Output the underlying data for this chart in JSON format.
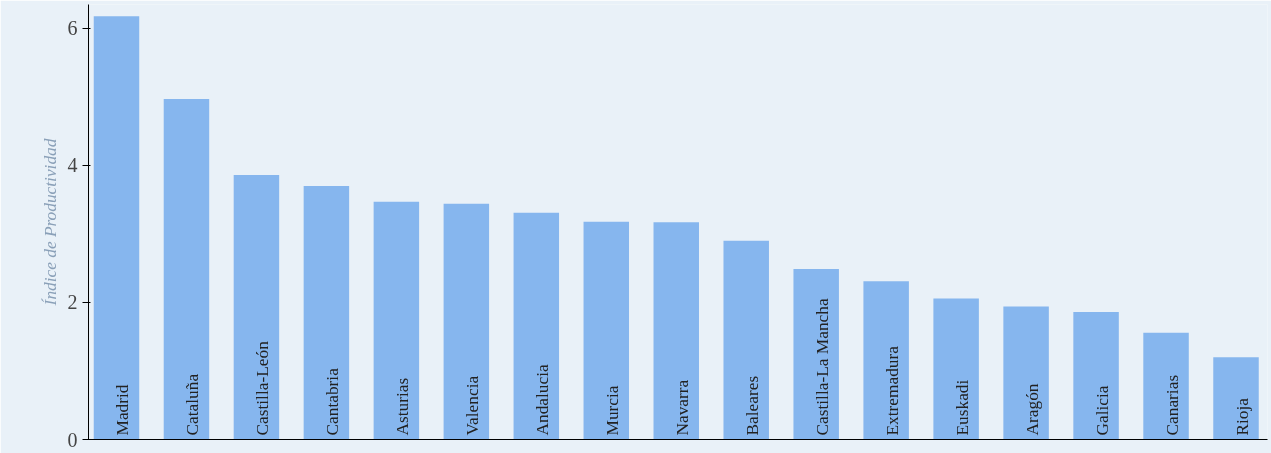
{
  "chart_data": {
    "type": "bar",
    "ylabel": "Índice de Productividad",
    "categories": [
      "Madrid",
      "Cataluña",
      "Castilla-León",
      "Cantabria",
      "Asturias",
      "Valencia",
      "Andalucia",
      "Murcia",
      "Navarra",
      "Baleares",
      "Castilla-La Mancha",
      "Extremadura",
      "Euskadi",
      "Aragón",
      "Galicia",
      "Canarias",
      "Rioja"
    ],
    "values": [
      6.18,
      4.97,
      3.86,
      3.7,
      3.47,
      3.44,
      3.31,
      3.18,
      3.17,
      2.9,
      2.49,
      2.31,
      2.06,
      1.94,
      1.86,
      1.56,
      1.2
    ],
    "color": "#86b6ee",
    "ylim": [
      0,
      6.35
    ],
    "yticks": [
      0,
      2,
      4,
      6
    ],
    "grid": false
  }
}
